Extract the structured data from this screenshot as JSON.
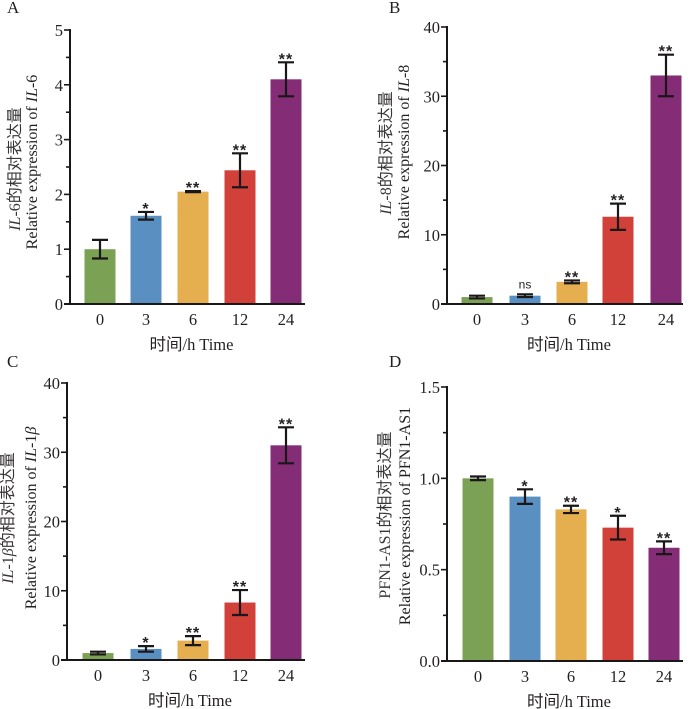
{
  "chart_data": [
    {
      "type": "bar",
      "panel_label": "A",
      "title": "",
      "categories": [
        "0",
        "3",
        "6",
        "12",
        "24"
      ],
      "values": [
        1.0,
        1.61,
        2.05,
        2.44,
        4.1
      ],
      "errors": [
        0.17,
        0.07,
        0.01,
        0.31,
        0.31
      ],
      "significance": [
        "",
        "*",
        "**",
        "**",
        "**"
      ],
      "bar_colors": [
        "#7ba254",
        "#5a8fc2",
        "#e5ae4f",
        "#d2403a",
        "#842c76"
      ],
      "xlabel": "时间/h Time",
      "ylabel_lines": [
        [
          {
            "text": "IL",
            "italic": true
          },
          {
            "text": "-6的相对表达量",
            "italic": false
          }
        ],
        [
          {
            "text": "Relative expression of ",
            "italic": false
          },
          {
            "text": "IL",
            "italic": true
          },
          {
            "text": "-6",
            "italic": false
          }
        ]
      ],
      "ylim": [
        0,
        5
      ],
      "yticks": [
        0,
        1,
        2,
        3,
        4,
        5
      ],
      "ytick_labels": [
        "0",
        "1",
        "2",
        "3",
        "4",
        "5"
      ],
      "minor_ticks": [
        0.5,
        1.5,
        2.5,
        3.5,
        4.5
      ],
      "grid": false
    },
    {
      "type": "bar",
      "panel_label": "B",
      "title": "",
      "categories": [
        "0",
        "3",
        "6",
        "12",
        "24"
      ],
      "values": [
        1.0,
        1.2,
        3.2,
        12.6,
        33.0
      ],
      "errors": [
        0.2,
        0.2,
        0.2,
        1.9,
        3.0
      ],
      "significance": [
        "",
        "ns",
        "**",
        "**",
        "**"
      ],
      "bar_colors": [
        "#7ba254",
        "#5a8fc2",
        "#e5ae4f",
        "#d2403a",
        "#842c76"
      ],
      "xlabel": "时间/h Time",
      "ylabel_lines": [
        [
          {
            "text": "IL",
            "italic": true
          },
          {
            "text": "-8的相对表达量",
            "italic": false
          }
        ],
        [
          {
            "text": "Relative expression of ",
            "italic": false
          },
          {
            "text": "IL",
            "italic": true
          },
          {
            "text": "-8",
            "italic": false
          }
        ]
      ],
      "ylim": [
        0,
        40
      ],
      "yticks": [
        0,
        10,
        20,
        30,
        40
      ],
      "ytick_labels": [
        "0",
        "10",
        "20",
        "30",
        "40"
      ],
      "minor_ticks": [
        5,
        15,
        25,
        35
      ],
      "grid": false
    },
    {
      "type": "bar",
      "panel_label": "C",
      "title": "",
      "categories": [
        "0",
        "3",
        "6",
        "12",
        "24"
      ],
      "values": [
        1.0,
        1.6,
        2.8,
        8.3,
        31.0
      ],
      "errors": [
        0.2,
        0.4,
        0.65,
        1.8,
        2.6
      ],
      "significance": [
        "",
        "*",
        "**",
        "**",
        "**"
      ],
      "bar_colors": [
        "#7ba254",
        "#5a8fc2",
        "#e5ae4f",
        "#d2403a",
        "#842c76"
      ],
      "xlabel": "时间/h Time",
      "ylabel_lines": [
        [
          {
            "text": "IL",
            "italic": true
          },
          {
            "text": "-1",
            "italic": false
          },
          {
            "text": "β",
            "italic": true
          },
          {
            "text": "的相对表达量",
            "italic": false
          }
        ],
        [
          {
            "text": "Relative expression of ",
            "italic": false
          },
          {
            "text": "IL",
            "italic": true
          },
          {
            "text": "-1",
            "italic": false
          },
          {
            "text": "β",
            "italic": true
          }
        ]
      ],
      "ylim": [
        0,
        40
      ],
      "yticks": [
        0,
        10,
        20,
        30,
        40
      ],
      "ytick_labels": [
        "0",
        "10",
        "20",
        "30",
        "40"
      ],
      "minor_ticks": [
        5,
        15,
        25,
        35
      ],
      "grid": false
    },
    {
      "type": "bar",
      "panel_label": "D",
      "title": "",
      "categories": [
        "0",
        "3",
        "6",
        "12",
        "24"
      ],
      "values": [
        1.0,
        0.9,
        0.83,
        0.73,
        0.62
      ],
      "errors": [
        0.01,
        0.04,
        0.02,
        0.065,
        0.035
      ],
      "significance": [
        "",
        "*",
        "**",
        "*",
        "**"
      ],
      "bar_colors": [
        "#7ba254",
        "#5a8fc2",
        "#e5ae4f",
        "#d2403a",
        "#842c76"
      ],
      "xlabel": "时间/h Time",
      "ylabel_lines": [
        [
          {
            "text": "PFN1-AS1的相对表达量",
            "italic": false
          }
        ],
        [
          {
            "text": "Relative expression of PFN1-AS1",
            "italic": false
          }
        ]
      ],
      "ylim": [
        0,
        1.5
      ],
      "yticks": [
        0,
        0.5,
        1.0,
        1.5
      ],
      "ytick_labels": [
        "0.0",
        "0.5",
        "1.0",
        "1.5"
      ],
      "minor_ticks": [
        0.25,
        0.75,
        1.25
      ],
      "grid": false
    }
  ]
}
